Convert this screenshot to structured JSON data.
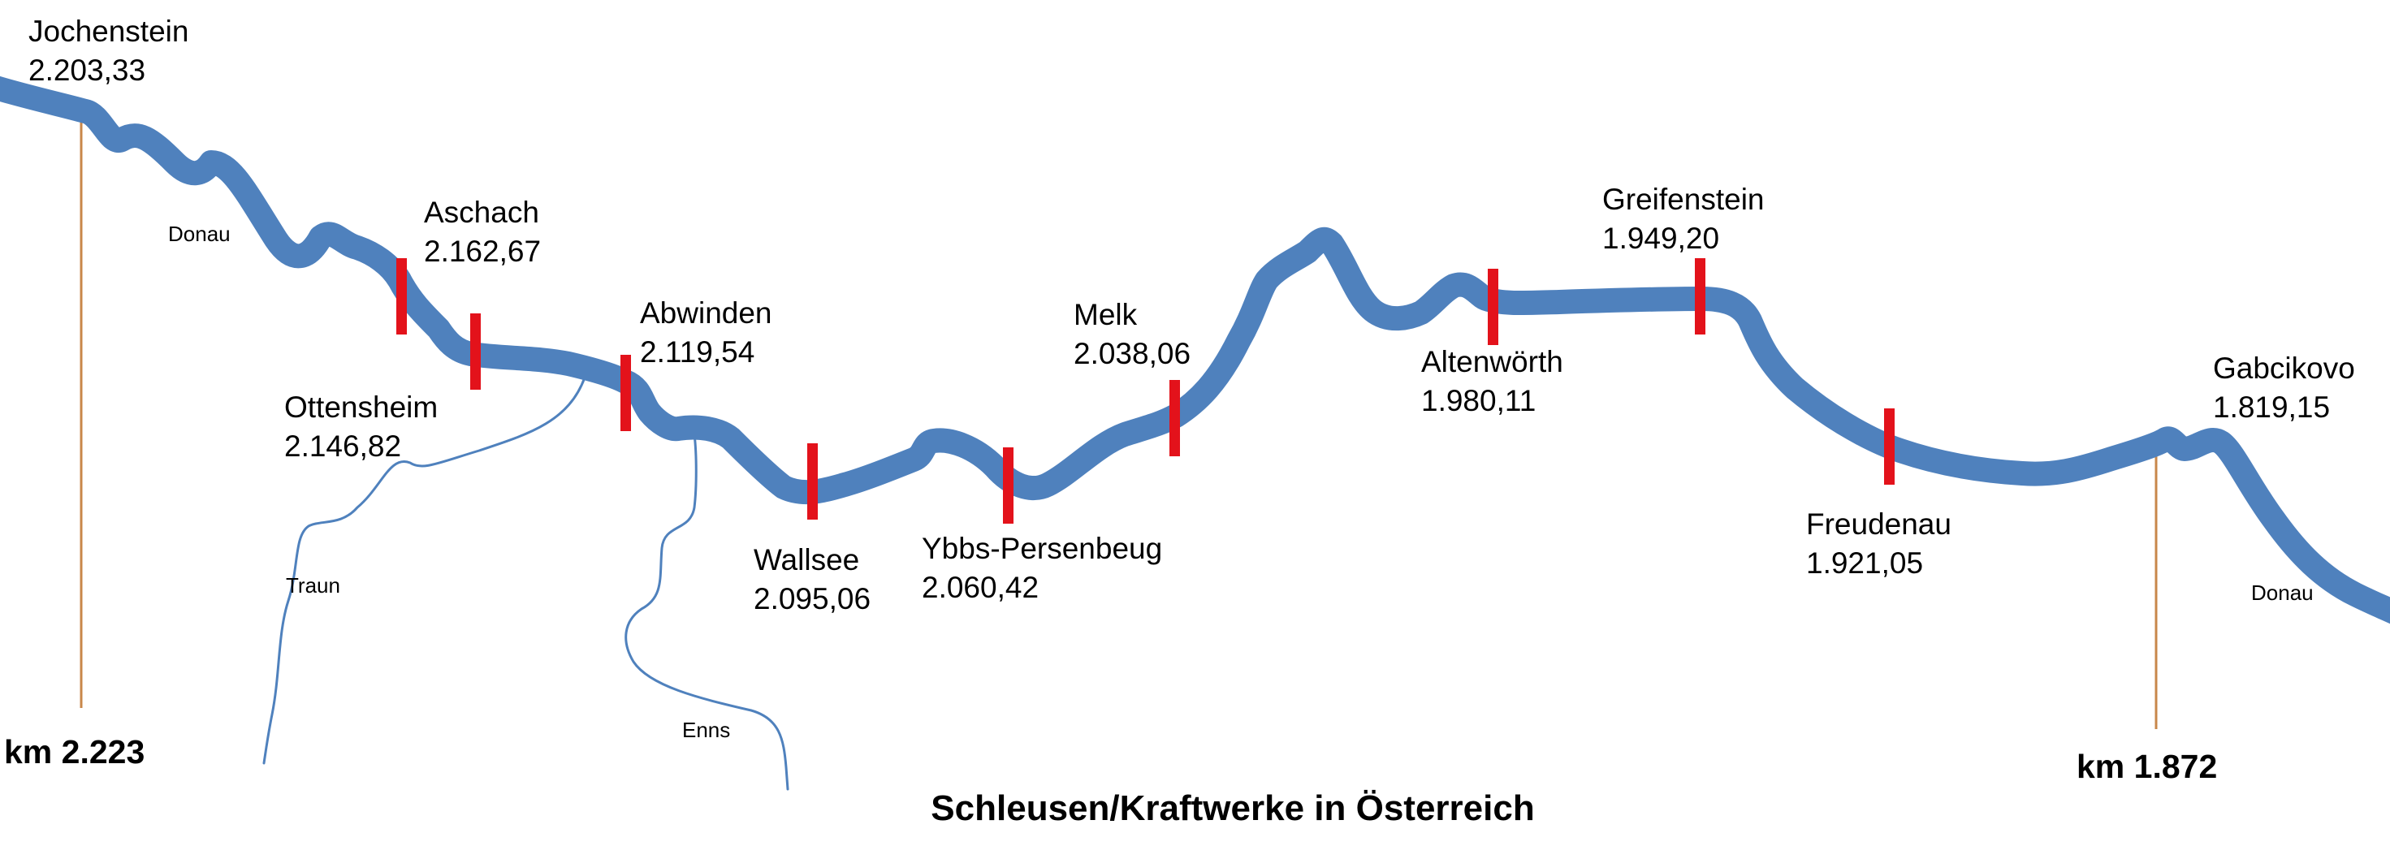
{
  "title": "Schleusen/Kraftwerke in Österreich",
  "colors": {
    "river": "#4f81bd",
    "lock_marker": "#e3121b",
    "km_line": "#c8874a"
  },
  "km_markers": {
    "start": "km 2.223",
    "end": "km 1.872"
  },
  "river_labels": {
    "main_upstream": "Donau",
    "main_downstream": "Donau",
    "traun": "Traun",
    "enns": "Enns"
  },
  "stations": [
    {
      "name": "Jochenstein",
      "km": "2.203,33"
    },
    {
      "name": "Aschach",
      "km": "2.162,67"
    },
    {
      "name": "Ottensheim",
      "km": "2.146,82"
    },
    {
      "name": "Abwinden",
      "km": "2.119,54"
    },
    {
      "name": "Wallsee",
      "km": "2.095,06"
    },
    {
      "name": "Ybbs-Persenbeug",
      "km": "2.060,42"
    },
    {
      "name": "Melk",
      "km": "2.038,06"
    },
    {
      "name": "Altenwörth",
      "km": "1.980,11"
    },
    {
      "name": "Greifenstein",
      "km": "1.949,20"
    },
    {
      "name": "Freudenau",
      "km": "1.921,05"
    },
    {
      "name": "Gabcikovo",
      "km": "1.819,15"
    }
  ]
}
